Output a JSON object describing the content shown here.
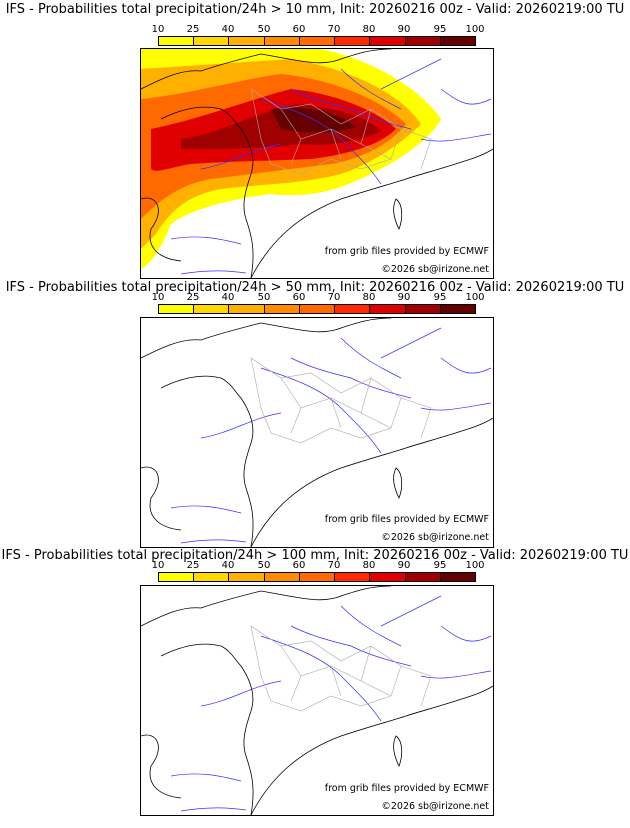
{
  "colorbar": {
    "ticks": [
      "10",
      "25",
      "40",
      "50",
      "60",
      "70",
      "80",
      "90",
      "95",
      "100"
    ],
    "colors": [
      "#ffff00",
      "#ffd800",
      "#ffb000",
      "#ff8c00",
      "#ff6a00",
      "#ff2a00",
      "#e00000",
      "#a00000",
      "#650000"
    ]
  },
  "panels": [
    {
      "title": "IFS - Probabilities total precipitation/24h > 10 mm, Init: 20260216 00z - Valid: 20260219:00 TU"
    },
    {
      "title": "IFS - Probabilities total precipitation/24h > 50 mm, Init: 20260216 00z - Valid: 20260219:00 TU"
    },
    {
      "title": "IFS - Probabilities total precipitation/24h > 100 mm, Init: 20260216 00z - Valid: 20260219:00 TU"
    }
  ],
  "credits": {
    "source": "from grib files provided by ECMWF",
    "copyright": "©2026 sb@irizone.net"
  }
}
